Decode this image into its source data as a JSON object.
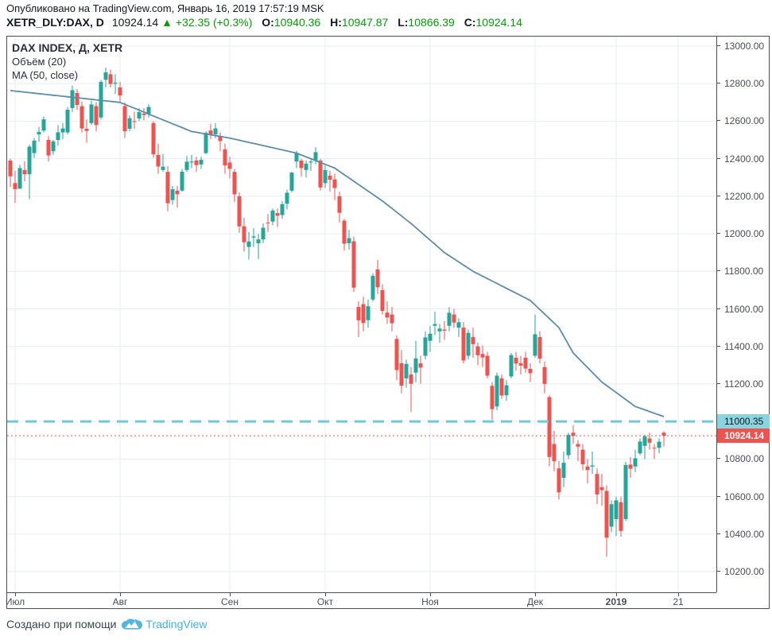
{
  "header": {
    "published": "Опубликовано на TradingView.com, Январь 16, 2019 17:57:19 MSK",
    "symbol": "XETR_DLY:DAX, D",
    "last_price": "10924.14",
    "direction_arrow": "▲",
    "change": "+32.35 (+0.3%)",
    "open_label": "O:",
    "open": "10940.36",
    "high_label": "H:",
    "high": "10947.87",
    "low_label": "L:",
    "low": "10866.39",
    "close_label": "C:",
    "close": "10924.14"
  },
  "legend": {
    "title": "DAX INDEX, Д, XETR",
    "volume": "Объём (20)",
    "ma": "MA (50, close)"
  },
  "footer": {
    "created_with": "Создано при помощи",
    "brand": "TradingView"
  },
  "colors": {
    "up": "#26a69a",
    "down": "#ef5350",
    "ma": "#5b8cae",
    "grid": "#e7edf3",
    "level": "#70c8d7",
    "level_label_bg": "#8ad4de",
    "price_label_bg": "#ef5350",
    "header_green": "#00a000",
    "axis_text": "#4a4d57",
    "brand_blue": "#3eb3e8"
  },
  "chart_data": {
    "type": "candlestick",
    "title": "DAX INDEX, Д, XETR",
    "interval": "D",
    "y_axis": {
      "min": 10200,
      "max": 13000,
      "step": 200,
      "tick_labels": [
        "13000.00",
        "12800.00",
        "12600.00",
        "12400.00",
        "12200.00",
        "12000.00",
        "11800.00",
        "11600.00",
        "11400.00",
        "11200.00",
        "11000.00",
        "10800.00",
        "10600.00",
        "10400.00",
        "10200.00"
      ]
    },
    "x_ticks": [
      {
        "label": "Июл",
        "index": 1
      },
      {
        "label": "Авг",
        "index": 23
      },
      {
        "label": "Сен",
        "index": 46
      },
      {
        "label": "Окт",
        "index": 66
      },
      {
        "label": "Ноя",
        "index": 88
      },
      {
        "label": "Дек",
        "index": 110
      },
      {
        "label": "2019",
        "index": 127,
        "bold": true
      },
      {
        "label": "21",
        "index": 140
      }
    ],
    "level_line": {
      "value": 11000.35,
      "label": "11000.35"
    },
    "price_line": {
      "value": 10924.14,
      "label": "10924.14"
    },
    "ma50_waypoints": [
      [
        0,
        12763
      ],
      [
        23,
        12700
      ],
      [
        38,
        12545
      ],
      [
        46,
        12510
      ],
      [
        60,
        12430
      ],
      [
        68,
        12350
      ],
      [
        78,
        12175
      ],
      [
        84,
        12055
      ],
      [
        91,
        11900
      ],
      [
        97,
        11800
      ],
      [
        109,
        11645
      ],
      [
        115,
        11500
      ],
      [
        118,
        11365
      ],
      [
        124,
        11210
      ],
      [
        131,
        11080
      ],
      [
        137,
        11026
      ]
    ],
    "candles": [
      [
        12390,
        12400,
        12250,
        12306
      ],
      [
        12270,
        12335,
        12165,
        12238
      ],
      [
        12240,
        12368,
        12240,
        12350
      ],
      [
        12340,
        12387,
        12280,
        12317
      ],
      [
        12317,
        12475,
        12185,
        12464
      ],
      [
        12430,
        12510,
        12405,
        12496
      ],
      [
        12530,
        12570,
        12490,
        12543
      ],
      [
        12550,
        12625,
        12540,
        12610
      ],
      [
        12500,
        12520,
        12385,
        12417
      ],
      [
        12440,
        12500,
        12420,
        12492
      ],
      [
        12500,
        12580,
        12470,
        12541
      ],
      [
        12540,
        12590,
        12505,
        12561
      ],
      [
        12540,
        12675,
        12530,
        12661
      ],
      [
        12670,
        12790,
        12650,
        12765
      ],
      [
        12750,
        12770,
        12660,
        12686
      ],
      [
        12680,
        12705,
        12540,
        12561
      ],
      [
        12560,
        12610,
        12485,
        12548
      ],
      [
        12590,
        12710,
        12580,
        12689
      ],
      [
        12680,
        12700,
        12545,
        12579
      ],
      [
        12620,
        12820,
        12610,
        12809
      ],
      [
        12820,
        12886,
        12780,
        12860
      ],
      [
        12850,
        12875,
        12780,
        12798
      ],
      [
        12800,
        12850,
        12745,
        12805
      ],
      [
        12780,
        12810,
        12700,
        12737
      ],
      [
        12680,
        12700,
        12510,
        12546
      ],
      [
        12560,
        12630,
        12545,
        12616
      ],
      [
        12600,
        12650,
        12560,
        12598
      ],
      [
        12615,
        12670,
        12600,
        12648
      ],
      [
        12640,
        12670,
        12605,
        12633
      ],
      [
        12640,
        12690,
        12620,
        12676
      ],
      [
        12590,
        12600,
        12405,
        12424
      ],
      [
        12420,
        12480,
        12320,
        12358
      ],
      [
        12340,
        12425,
        12330,
        12358
      ],
      [
        12330,
        12360,
        12120,
        12163
      ],
      [
        12180,
        12255,
        12155,
        12237
      ],
      [
        12230,
        12255,
        12140,
        12211
      ],
      [
        12230,
        12345,
        12225,
        12331
      ],
      [
        12340,
        12415,
        12330,
        12384
      ],
      [
        12380,
        12420,
        12350,
        12385
      ],
      [
        12390,
        12410,
        12330,
        12366
      ],
      [
        12370,
        12410,
        12345,
        12394
      ],
      [
        12430,
        12545,
        12425,
        12538
      ],
      [
        12550,
        12585,
        12505,
        12527
      ],
      [
        12530,
        12590,
        12510,
        12561
      ],
      [
        12520,
        12540,
        12440,
        12494
      ],
      [
        12450,
        12480,
        12320,
        12364
      ],
      [
        12380,
        12410,
        12295,
        12346
      ],
      [
        12330,
        12345,
        12170,
        12210
      ],
      [
        12200,
        12220,
        12005,
        12040
      ],
      [
        12040,
        12085,
        11905,
        11955
      ],
      [
        11930,
        12010,
        11862,
        11959
      ],
      [
        11980,
        12030,
        11930,
        11986
      ],
      [
        11950,
        12000,
        11865,
        11970
      ],
      [
        11970,
        12055,
        11950,
        12032
      ],
      [
        12060,
        12105,
        12010,
        12056
      ],
      [
        12065,
        12135,
        12045,
        12124
      ],
      [
        12110,
        12135,
        12035,
        12096
      ],
      [
        12100,
        12175,
        12080,
        12158
      ],
      [
        12160,
        12235,
        12130,
        12219
      ],
      [
        12230,
        12330,
        12220,
        12326
      ],
      [
        12385,
        12442,
        12350,
        12431
      ],
      [
        12390,
        12400,
        12305,
        12350
      ],
      [
        12340,
        12390,
        12300,
        12374
      ],
      [
        12380,
        12405,
        12335,
        12385
      ],
      [
        12390,
        12460,
        12370,
        12435
      ],
      [
        12390,
        12400,
        12230,
        12247
      ],
      [
        12270,
        12365,
        12245,
        12339
      ],
      [
        12310,
        12335,
        12225,
        12288
      ],
      [
        12290,
        12320,
        12180,
        12244
      ],
      [
        12200,
        12225,
        12060,
        12112
      ],
      [
        12070,
        12080,
        11910,
        11947
      ],
      [
        11950,
        12020,
        11915,
        11977
      ],
      [
        11960,
        11985,
        11690,
        11713
      ],
      [
        11610,
        11640,
        11450,
        11539
      ],
      [
        11625,
        11665,
        11480,
        11524
      ],
      [
        11540,
        11650,
        11500,
        11614
      ],
      [
        11650,
        11790,
        11640,
        11776
      ],
      [
        11810,
        11860,
        11680,
        11715
      ],
      [
        11700,
        11730,
        11570,
        11589
      ],
      [
        11580,
        11640,
        11520,
        11554
      ],
      [
        11570,
        11610,
        11480,
        11524
      ],
      [
        11440,
        11460,
        11220,
        11274
      ],
      [
        11310,
        11380,
        11150,
        11191
      ],
      [
        11230,
        11330,
        11180,
        11307
      ],
      [
        11250,
        11290,
        11051,
        11201
      ],
      [
        11260,
        11430,
        11210,
        11336
      ],
      [
        11310,
        11350,
        11200,
        11287
      ],
      [
        11350,
        11480,
        11330,
        11448
      ],
      [
        11430,
        11510,
        11370,
        11468
      ],
      [
        11510,
        11585,
        11460,
        11519
      ],
      [
        11480,
        11520,
        11420,
        11495
      ],
      [
        11490,
        11535,
        11435,
        11484
      ],
      [
        11510,
        11610,
        11480,
        11579
      ],
      [
        11570,
        11600,
        11500,
        11527
      ],
      [
        11500,
        11550,
        11450,
        11529
      ],
      [
        11500,
        11530,
        11310,
        11325
      ],
      [
        11350,
        11490,
        11330,
        11472
      ],
      [
        11450,
        11500,
        11340,
        11412
      ],
      [
        11400,
        11420,
        11300,
        11353
      ],
      [
        11360,
        11405,
        11290,
        11341
      ],
      [
        11350,
        11370,
        11230,
        11244
      ],
      [
        11190,
        11210,
        11009,
        11066
      ],
      [
        11080,
        11260,
        11060,
        11244
      ],
      [
        11230,
        11250,
        11120,
        11138
      ],
      [
        11140,
        11220,
        11110,
        11193
      ],
      [
        11240,
        11365,
        11230,
        11354
      ],
      [
        11340,
        11370,
        11270,
        11309
      ],
      [
        11310,
        11350,
        11250,
        11298
      ],
      [
        11340,
        11370,
        11260,
        11282
      ],
      [
        11280,
        11310,
        11210,
        11257
      ],
      [
        11350,
        11570,
        11340,
        11465
      ],
      [
        11450,
        11480,
        11310,
        11335
      ],
      [
        11290,
        11320,
        11150,
        11200
      ],
      [
        11130,
        11140,
        10762,
        10811
      ],
      [
        10880,
        10950,
        10735,
        10788
      ],
      [
        10750,
        10790,
        10585,
        10622
      ],
      [
        10700,
        10840,
        10650,
        10780
      ],
      [
        10820,
        10940,
        10800,
        10929
      ],
      [
        10940,
        10980,
        10880,
        10924
      ],
      [
        10880,
        10900,
        10790,
        10866
      ],
      [
        10850,
        10880,
        10740,
        10772
      ],
      [
        10760,
        10800,
        10670,
        10741
      ],
      [
        10760,
        10840,
        10720,
        10766
      ],
      [
        10720,
        10750,
        10560,
        10611
      ],
      [
        10650,
        10720,
        10550,
        10634
      ],
      [
        10630,
        10660,
        10279,
        10381
      ],
      [
        10440,
        10580,
        10410,
        10559
      ],
      [
        10480,
        10600,
        10390,
        10580
      ],
      [
        10570,
        10600,
        10386,
        10417
      ],
      [
        10480,
        10786,
        10470,
        10768
      ],
      [
        10770,
        10810,
        10700,
        10748
      ],
      [
        10760,
        10850,
        10730,
        10804
      ],
      [
        10830,
        10910,
        10820,
        10893
      ],
      [
        10870,
        10930,
        10800,
        10921
      ],
      [
        10910,
        10940,
        10850,
        10887
      ],
      [
        10860,
        10880,
        10800,
        10856
      ],
      [
        10860,
        10910,
        10830,
        10892
      ],
      [
        10940.36,
        10947.87,
        10866.39,
        10924.14
      ]
    ]
  }
}
